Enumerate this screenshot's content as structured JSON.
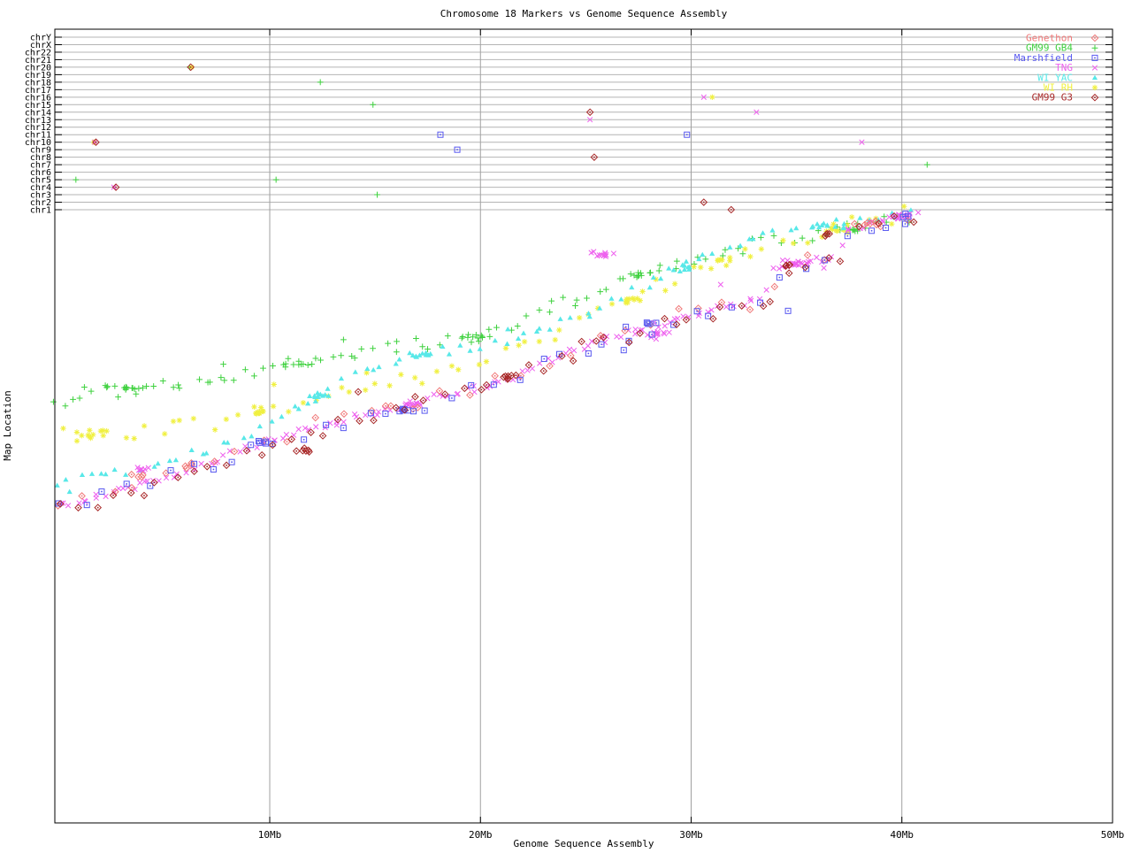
{
  "title": "Chromosome 18 Markers vs Genome Sequence Assembly",
  "x_axis": {
    "label": "Genome Sequence Assembly",
    "ticks": [
      {
        "mb": 10,
        "label": "10Mb"
      },
      {
        "mb": 20,
        "label": "20Mb"
      },
      {
        "mb": 30,
        "label": "30Mb"
      },
      {
        "mb": 40,
        "label": "40Mb"
      },
      {
        "mb": 50,
        "label": "50Mb"
      }
    ],
    "range_mb": [
      0,
      50
    ]
  },
  "y_axis": {
    "label": "Map Location",
    "chromosome_rows": [
      "chrY",
      "chrX",
      "chr22",
      "chr21",
      "chr20",
      "chr19",
      "chr18",
      "chr17",
      "chr16",
      "chr15",
      "chr14",
      "chr13",
      "chr12",
      "chr11",
      "chr10",
      "chr9",
      "chr8",
      "chr7",
      "chr6",
      "chr5",
      "chr4",
      "chr3",
      "chr2",
      "chr1"
    ]
  },
  "chart_data": {
    "type": "scatter",
    "note": "Marker map position (u = percent of map-location axis, 0=bottom 100=chr1 line) vs genome assembly position in Mb. Dense bands approximated by anchor curves read off the plot; clusters = [mb,u,n,dx,du]; chrom_outliers are points drawn on the named chromosome row of the upper band.",
    "series": [
      {
        "name": "Genethon",
        "color": "#f07878",
        "marker": "diamond-dot",
        "count": 34,
        "ujit": 1.5,
        "xjit": 0.25,
        "seed": 11,
        "anchors": [
          [
            0,
            53.0
          ],
          [
            2,
            54.6
          ],
          [
            4,
            56.2
          ],
          [
            6,
            57.8
          ],
          [
            8,
            60.5
          ],
          [
            10,
            62.8
          ],
          [
            14,
            66.3
          ],
          [
            18,
            69.8
          ],
          [
            22,
            73.5
          ],
          [
            26,
            79.1
          ],
          [
            30,
            83.0
          ],
          [
            33.6,
            85.8
          ],
          [
            34.2,
            90.4
          ],
          [
            37,
            92.5
          ],
          [
            37.5,
            96.8
          ],
          [
            40.2,
            98.6
          ]
        ],
        "clusters": [
          [
            3.7,
            56.6,
            4,
            0.3,
            0.4
          ],
          [
            6.1,
            58.0,
            3,
            0.3,
            0.4
          ],
          [
            38.6,
            97.9,
            5,
            0.6,
            0.5
          ]
        ],
        "loners": [
          [
            15.5,
            68.0
          ],
          [
            16.8,
            67.5
          ]
        ],
        "chrom_outliers": []
      },
      {
        "name": "GM99 GB4",
        "color": "#3ed13e",
        "marker": "plus",
        "count": 95,
        "ujit": 1.2,
        "xjit": 0.3,
        "seed": 22,
        "anchors": [
          [
            0,
            69.3
          ],
          [
            2,
            70.4
          ],
          [
            4,
            71.0
          ],
          [
            6,
            71.3
          ],
          [
            8,
            72.4
          ],
          [
            10,
            74.0
          ],
          [
            12,
            75.3
          ],
          [
            14,
            76.5
          ],
          [
            16,
            77.6
          ],
          [
            18,
            78.5
          ],
          [
            20,
            79.4
          ],
          [
            22,
            82.0
          ],
          [
            24,
            84.8
          ],
          [
            26,
            87.4
          ],
          [
            28,
            89.9
          ],
          [
            30,
            91.8
          ],
          [
            32,
            93.5
          ],
          [
            34,
            95.0
          ],
          [
            36,
            96.1
          ],
          [
            38,
            97.3
          ],
          [
            40.3,
            98.4
          ]
        ],
        "clusters": [
          [
            3.2,
            70.9,
            12,
            1.3,
            0.5
          ],
          [
            11.2,
            74.7,
            8,
            0.9,
            0.5
          ],
          [
            19.5,
            79.2,
            9,
            0.8,
            0.6
          ],
          [
            27.6,
            89.3,
            8,
            0.6,
            0.5
          ],
          [
            37.5,
            96.8,
            8,
            0.9,
            0.5
          ]
        ],
        "loners": [
          [
            0.3,
            68.0
          ],
          [
            7.8,
            74.8
          ],
          [
            13.5,
            78.8
          ]
        ],
        "chrom_outliers": [
          [
            6.2,
            "chr20"
          ],
          [
            12.4,
            "chr18"
          ],
          [
            14.9,
            "chr15"
          ],
          [
            0.8,
            "chr5"
          ],
          [
            10.3,
            "chr5"
          ],
          [
            15.1,
            "chr3"
          ],
          [
            41.2,
            "chr7"
          ]
        ]
      },
      {
        "name": "Marshfield",
        "color": "#5858f0",
        "marker": "square-dot",
        "count": 40,
        "ujit": 1.2,
        "xjit": 0.3,
        "seed": 33,
        "anchors": [
          [
            0,
            51.2
          ],
          [
            4,
            55.0
          ],
          [
            8,
            59.6
          ],
          [
            12,
            64.0
          ],
          [
            16,
            67.3
          ],
          [
            20,
            70.6
          ],
          [
            24,
            76.1
          ],
          [
            28,
            80.4
          ],
          [
            32,
            84.2
          ],
          [
            33.6,
            85.4
          ],
          [
            34.1,
            90.0
          ],
          [
            37,
            92.0
          ],
          [
            37.5,
            96.6
          ],
          [
            40.4,
            98.8
          ]
        ],
        "clusters": [
          [
            9.9,
            62.1,
            4,
            0.6,
            0.3
          ],
          [
            16.5,
            67.4,
            5,
            0.6,
            0.3
          ],
          [
            28.2,
            81.6,
            4,
            0.7,
            0.6
          ],
          [
            40.2,
            99.0,
            3,
            0.4,
            0.4
          ]
        ],
        "loners": [
          [
            26.8,
            77.1
          ],
          [
            34.6,
            83.5
          ],
          [
            26.9,
            80.9
          ]
        ],
        "chrom_outliers": [
          [
            18.1,
            "chr11"
          ],
          [
            18.9,
            "chr9"
          ],
          [
            29.8,
            "chr11"
          ]
        ]
      },
      {
        "name": "TNG",
        "color": "#ee5fee",
        "marker": "x",
        "count": 150,
        "ujit": 0.55,
        "xjit": 0.18,
        "seed": 44,
        "anchors": [
          [
            0,
            51.5
          ],
          [
            2,
            53.4
          ],
          [
            4,
            55.3
          ],
          [
            6,
            57.4
          ],
          [
            8,
            60.0
          ],
          [
            10,
            62.5
          ],
          [
            12,
            64.4
          ],
          [
            14,
            66.1
          ],
          [
            16,
            67.7
          ],
          [
            18,
            69.6
          ],
          [
            20,
            71.0
          ],
          [
            22,
            73.3
          ],
          [
            24,
            76.5
          ],
          [
            26,
            78.9
          ],
          [
            28,
            80.8
          ],
          [
            30,
            82.8
          ],
          [
            33.5,
            85.6
          ],
          [
            33.9,
            90.4
          ],
          [
            37,
            92.4
          ],
          [
            37.4,
            96.9
          ],
          [
            40.6,
            99.3
          ]
        ],
        "clusters": [
          [
            4.0,
            57.7,
            8,
            0.35,
            0.4
          ],
          [
            16.8,
            68.2,
            10,
            0.5,
            0.5
          ],
          [
            25.8,
            92.7,
            12,
            0.7,
            0.8
          ],
          [
            28.4,
            79.7,
            12,
            0.9,
            1.1
          ],
          [
            34.9,
            91.3,
            14,
            0.9,
            0.6
          ],
          [
            39.9,
            98.9,
            10,
            0.6,
            0.5
          ]
        ],
        "loners": [
          [
            31.4,
            87.8
          ],
          [
            36.3,
            90.5
          ]
        ],
        "chrom_outliers": [
          [
            1.7,
            "chr10"
          ],
          [
            2.6,
            "chr4"
          ],
          [
            25.2,
            "chr13"
          ],
          [
            30.6,
            "chr16"
          ],
          [
            33.1,
            "chr14"
          ],
          [
            38.1,
            "chr10"
          ]
        ]
      },
      {
        "name": "WI YAC",
        "color": "#58e8e8",
        "marker": "triangle",
        "count": 85,
        "ujit": 0.8,
        "xjit": 0.25,
        "seed": 55,
        "anchors": [
          [
            0,
            55.6
          ],
          [
            2,
            56.7
          ],
          [
            4,
            58.2
          ],
          [
            6,
            59.9
          ],
          [
            8,
            62.0
          ],
          [
            9,
            63.5
          ],
          [
            10,
            65.2
          ],
          [
            11,
            67.0
          ],
          [
            12,
            69.0
          ],
          [
            13,
            71.0
          ],
          [
            14,
            72.7
          ],
          [
            15,
            74.0
          ],
          [
            16,
            75.3
          ],
          [
            17,
            76.2
          ],
          [
            18,
            76.9
          ],
          [
            20,
            77.9
          ],
          [
            22,
            79.5
          ],
          [
            24,
            81.7
          ],
          [
            26,
            84.4
          ],
          [
            28,
            88.0
          ],
          [
            30,
            91.6
          ],
          [
            32,
            94.2
          ],
          [
            34,
            96.0
          ],
          [
            36,
            97.1
          ],
          [
            38,
            98.3
          ],
          [
            40.3,
            99.4
          ]
        ],
        "clusters": [
          [
            12.5,
            69.6,
            10,
            0.9,
            1.0
          ],
          [
            17.2,
            76.3,
            8,
            0.6,
            0.5
          ],
          [
            29.5,
            90.6,
            8,
            0.7,
            0.8
          ],
          [
            36.5,
            97.2,
            8,
            0.9,
            0.5
          ]
        ],
        "loners": [
          [
            0.5,
            54.0
          ],
          [
            21.3,
            80.5
          ]
        ],
        "chrom_outliers": []
      },
      {
        "name": "WI RH",
        "color": "#f0f040",
        "marker": "star",
        "count": 68,
        "ujit": 1.4,
        "xjit": 0.3,
        "seed": 66,
        "anchors": [
          [
            0,
            63.2
          ],
          [
            2,
            63.7
          ],
          [
            4,
            64.1
          ],
          [
            6,
            64.6
          ],
          [
            8,
            65.8
          ],
          [
            10,
            67.1
          ],
          [
            12,
            68.5
          ],
          [
            14,
            70.4
          ],
          [
            16,
            72.2
          ],
          [
            18,
            73.6
          ],
          [
            20,
            75.3
          ],
          [
            22,
            77.6
          ],
          [
            24,
            80.5
          ],
          [
            26,
            84.0
          ],
          [
            28,
            87.0
          ],
          [
            30,
            89.8
          ],
          [
            32,
            92.1
          ],
          [
            34,
            94.4
          ],
          [
            36,
            96.4
          ],
          [
            38,
            98.0
          ],
          [
            40.2,
            99.3
          ]
        ],
        "clusters": [
          [
            1.5,
            63.4,
            8,
            1.0,
            0.8
          ],
          [
            9.5,
            66.9,
            8,
            0.9,
            0.6
          ],
          [
            27.3,
            85.4,
            8,
            0.6,
            0.8
          ],
          [
            31.5,
            91.7,
            6,
            0.6,
            0.5
          ],
          [
            36.8,
            96.7,
            8,
            0.9,
            0.5
          ]
        ],
        "loners": [
          [
            10.2,
            71.5
          ],
          [
            14.6,
            73.4
          ]
        ],
        "chrom_outliers": [
          [
            6.3,
            "chr20"
          ],
          [
            1.65,
            "chr10"
          ],
          [
            31.0,
            "chr16"
          ]
        ]
      },
      {
        "name": "GM99 G3",
        "color": "#a82828",
        "marker": "diamond-dot",
        "count": 52,
        "ujit": 1.3,
        "xjit": 0.3,
        "seed": 77,
        "anchors": [
          [
            0,
            50.8
          ],
          [
            4,
            54.6
          ],
          [
            8,
            59.4
          ],
          [
            12,
            63.8
          ],
          [
            16,
            67.1
          ],
          [
            20,
            70.4
          ],
          [
            24,
            75.9
          ],
          [
            28,
            80.2
          ],
          [
            32,
            84.3
          ],
          [
            33.7,
            85.3
          ],
          [
            34.2,
            90.2
          ],
          [
            37,
            92.1
          ],
          [
            37.5,
            96.5
          ],
          [
            40.3,
            98.7
          ]
        ],
        "clusters": [
          [
            11.5,
            60.8,
            6,
            0.6,
            0.4
          ],
          [
            21.5,
            72.7,
            6,
            0.5,
            0.4
          ],
          [
            34.5,
            90.9,
            5,
            0.5,
            0.4
          ],
          [
            36.4,
            95.9,
            4,
            0.4,
            0.4
          ]
        ],
        "loners": [
          [
            14.2,
            70.3
          ],
          [
            16.9,
            69.5
          ],
          [
            24.8,
            78.5
          ]
        ],
        "chrom_outliers": [
          [
            6.25,
            "chr20"
          ],
          [
            1.75,
            "chr10"
          ],
          [
            2.7,
            "chr4"
          ],
          [
            25.2,
            "chr14"
          ],
          [
            30.6,
            "chr2"
          ],
          [
            31.9,
            "chr1"
          ],
          [
            25.4,
            "chr8"
          ]
        ]
      }
    ],
    "legend": {
      "position": "top-right"
    }
  },
  "colors": {
    "row_gridline": "#b4b4b4",
    "x_gridline": "#a0a0a0",
    "border": "#000000",
    "text": "#000000"
  }
}
